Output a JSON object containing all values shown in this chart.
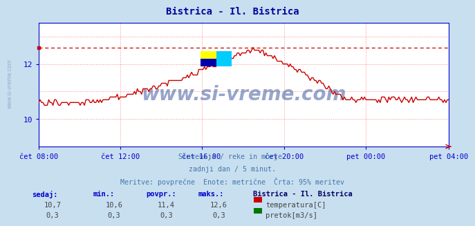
{
  "title": "Bistrica - Il. Bistrica",
  "title_color": "#000099",
  "bg_color": "#c8dff0",
  "plot_bg_color": "#ffffff",
  "grid_color_h": "#ff8888",
  "grid_color_v": "#ff8888",
  "axis_color": "#0000cc",
  "text_color": "#4477aa",
  "subtitle_lines": [
    "Slovenija / reke in morje.",
    "zadnji dan / 5 minut.",
    "Meritve: povprečne  Enote: metrične  Črta: 95% meritev"
  ],
  "xlabel_ticks": [
    "čet 08:00",
    "čet 12:00",
    "čet 16:00",
    "čet 20:00",
    "pet 00:00",
    "pet 04:00"
  ],
  "tick_positions_norm": [
    0.0,
    0.2,
    0.4,
    0.6,
    0.8,
    1.0
  ],
  "total_points": 288,
  "ylim": [
    9.0,
    13.5
  ],
  "ytick_vals": [
    10,
    12
  ],
  "max_line_value": 12.6,
  "temp_color": "#cc0000",
  "flow_color": "#007700",
  "watermark_text": "www.si-vreme.com",
  "watermark_color": "#1a3a8c",
  "watermark_alpha": 0.45,
  "stats_headers": [
    "sedaj:",
    "min.:",
    "povpr.:",
    "maks.:"
  ],
  "stats_temp": [
    "10,7",
    "10,6",
    "11,4",
    "12,6"
  ],
  "stats_flow": [
    "0,3",
    "0,3",
    "0,3",
    "0,3"
  ],
  "legend_station": "Bistrica - Il. Bistrica",
  "legend_temp_label": "temperatura[C]",
  "legend_flow_label": "pretok[m3/s]"
}
